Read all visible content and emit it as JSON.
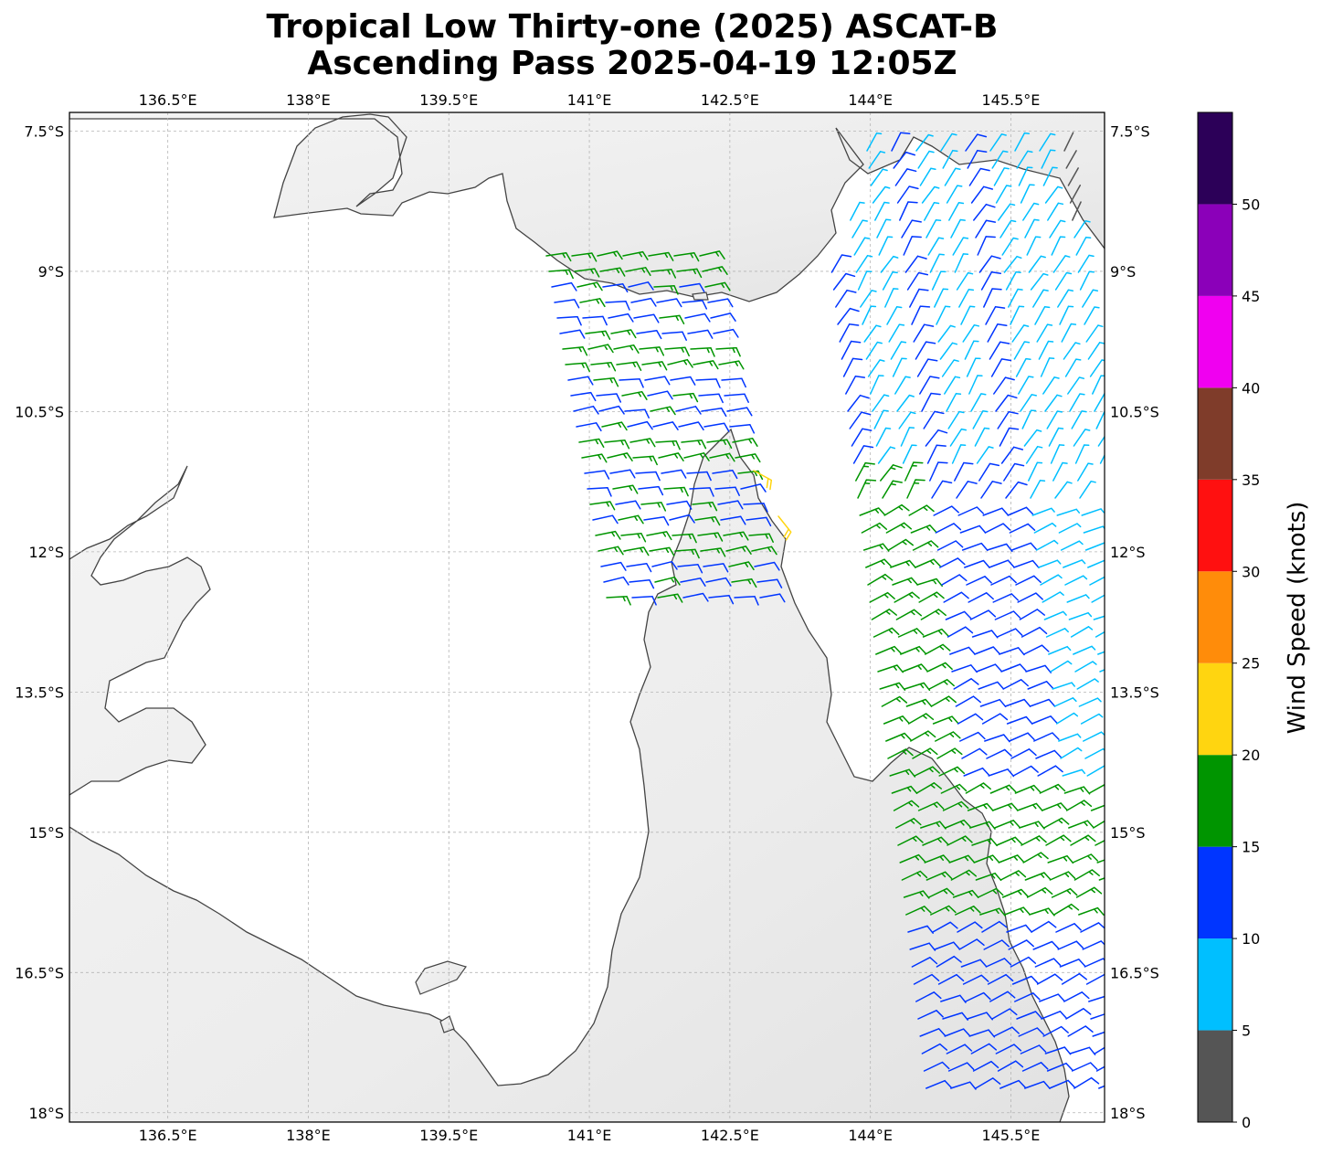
{
  "title_line1": "Tropical Low Thirty-one (2025) ASCAT-B",
  "title_line2": "Ascending Pass 2025-04-19 12:05Z",
  "map": {
    "lon_labels": [
      "136.5°E",
      "138°E",
      "139.5°E",
      "141°E",
      "142.5°E",
      "144°E",
      "145.5°E"
    ],
    "lat_labels": [
      "7.5°S",
      "9°S",
      "10.5°S",
      "12°S",
      "13.5°S",
      "15°S",
      "16.5°S",
      "18°S"
    ],
    "lon_range": [
      135.45,
      146.5
    ],
    "lat_range": [
      -18.1,
      -7.3
    ]
  },
  "colorbar": {
    "label": "Wind Speed (knots)",
    "ticks": [
      "0",
      "5",
      "10",
      "15",
      "20",
      "25",
      "30",
      "35",
      "40",
      "45",
      "50"
    ],
    "bins": [
      {
        "from": 0,
        "to": 5,
        "color": "#555555"
      },
      {
        "from": 5,
        "to": 10,
        "color": "#00bfff"
      },
      {
        "from": 10,
        "to": 15,
        "color": "#0035ff"
      },
      {
        "from": 15,
        "to": 20,
        "color": "#009500"
      },
      {
        "from": 20,
        "to": 25,
        "color": "#ffd510"
      },
      {
        "from": 25,
        "to": 30,
        "color": "#ff8c0a"
      },
      {
        "from": 30,
        "to": 35,
        "color": "#ff1010"
      },
      {
        "from": 35,
        "to": 40,
        "color": "#7f3c2a"
      },
      {
        "from": 40,
        "to": 45,
        "color": "#f000f0"
      },
      {
        "from": 45,
        "to": 50,
        "color": "#8b00b9"
      },
      {
        "from": 50,
        "to": 55,
        "color": "#2c0058"
      }
    ]
  }
}
